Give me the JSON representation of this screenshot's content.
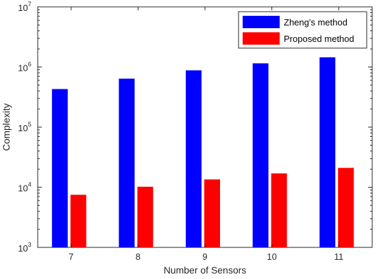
{
  "chart_data": {
    "type": "bar",
    "title": "",
    "xlabel": "Number of Sensors",
    "ylabel": "Complexity",
    "yscale": "log",
    "ylim": [
      1000,
      10000000
    ],
    "yticks": [
      {
        "value": 1000,
        "base": "10",
        "exp": "3"
      },
      {
        "value": 10000,
        "base": "10",
        "exp": "4"
      },
      {
        "value": 100000,
        "base": "10",
        "exp": "5"
      },
      {
        "value": 1000000,
        "base": "10",
        "exp": "6"
      },
      {
        "value": 10000000,
        "base": "10",
        "exp": "7"
      }
    ],
    "categories": [
      "7",
      "8",
      "9",
      "10",
      "11"
    ],
    "series": [
      {
        "name": "Zheng's method",
        "color": "#0000ff",
        "values": [
          430000,
          640000,
          880000,
          1150000,
          1450000
        ]
      },
      {
        "name": "Proposed method",
        "color": "#ff0000",
        "values": [
          7500,
          10200,
          13500,
          17000,
          21000
        ]
      }
    ],
    "legend_position": "top-right",
    "grid": false
  }
}
